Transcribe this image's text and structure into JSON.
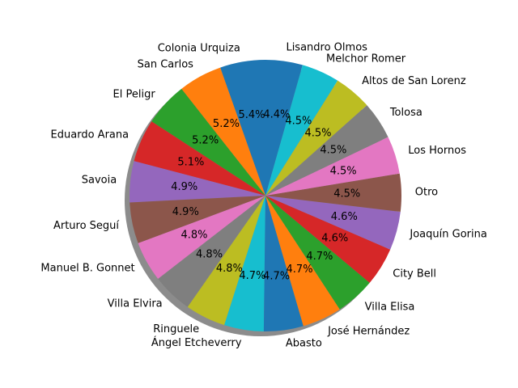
{
  "chart_data": {
    "type": "pie",
    "shadow": true,
    "start": "top, counter-clockwise",
    "slices": [
      {
        "label": "Colonia Urquiza",
        "value": 5.4,
        "pct": "5.4%",
        "color": "#1f77b4"
      },
      {
        "label": "San Carlos",
        "value": 5.2,
        "pct": "5.2%",
        "color": "#ff7f0e"
      },
      {
        "label": "El Peligr",
        "value": 5.2,
        "pct": "5.2%",
        "color": "#2ca02c"
      },
      {
        "label": "Eduardo Arana",
        "value": 5.1,
        "pct": "5.1%",
        "color": "#d62728"
      },
      {
        "label": "Savoia",
        "value": 4.9,
        "pct": "4.9%",
        "color": "#9467bd"
      },
      {
        "label": "Arturo Seguí",
        "value": 4.9,
        "pct": "4.9%",
        "color": "#8c564b"
      },
      {
        "label": "Manuel B. Gonnet",
        "value": 4.8,
        "pct": "4.8%",
        "color": "#e377c2"
      },
      {
        "label": "Villa Elvira",
        "value": 4.8,
        "pct": "4.8%",
        "color": "#7f7f7f"
      },
      {
        "label": "Ringuele",
        "value": 4.8,
        "pct": "4.8%",
        "color": "#bcbd22"
      },
      {
        "label": "Ángel Etcheverry",
        "value": 4.7,
        "pct": "4.7%",
        "color": "#17becf"
      },
      {
        "label": "Abasto",
        "value": 4.7,
        "pct": "4.7%",
        "color": "#1f77b4"
      },
      {
        "label": "José Hernández",
        "value": 4.7,
        "pct": "4.7%",
        "color": "#ff7f0e"
      },
      {
        "label": "Villa Elisa",
        "value": 4.7,
        "pct": "4.7%",
        "color": "#2ca02c"
      },
      {
        "label": "City Bell",
        "value": 4.6,
        "pct": "4.6%",
        "color": "#d62728"
      },
      {
        "label": "Joaquín Gorina",
        "value": 4.6,
        "pct": "4.6%",
        "color": "#9467bd"
      },
      {
        "label": "Otro",
        "value": 4.5,
        "pct": "4.5%",
        "color": "#8c564b"
      },
      {
        "label": "Los Hornos",
        "value": 4.5,
        "pct": "4.5%",
        "color": "#e377c2"
      },
      {
        "label": "Tolosa",
        "value": 4.5,
        "pct": "4.5%",
        "color": "#7f7f7f"
      },
      {
        "label": "Altos de San Lorenz",
        "value": 4.5,
        "pct": "4.5%",
        "color": "#bcbd22"
      },
      {
        "label": "Melchor Romer",
        "value": 4.5,
        "pct": "4.5%",
        "color": "#17becf"
      },
      {
        "label": "Lisandro Olmos",
        "value": 4.4,
        "pct": "4.4%",
        "color": "#1f77b4"
      }
    ]
  }
}
